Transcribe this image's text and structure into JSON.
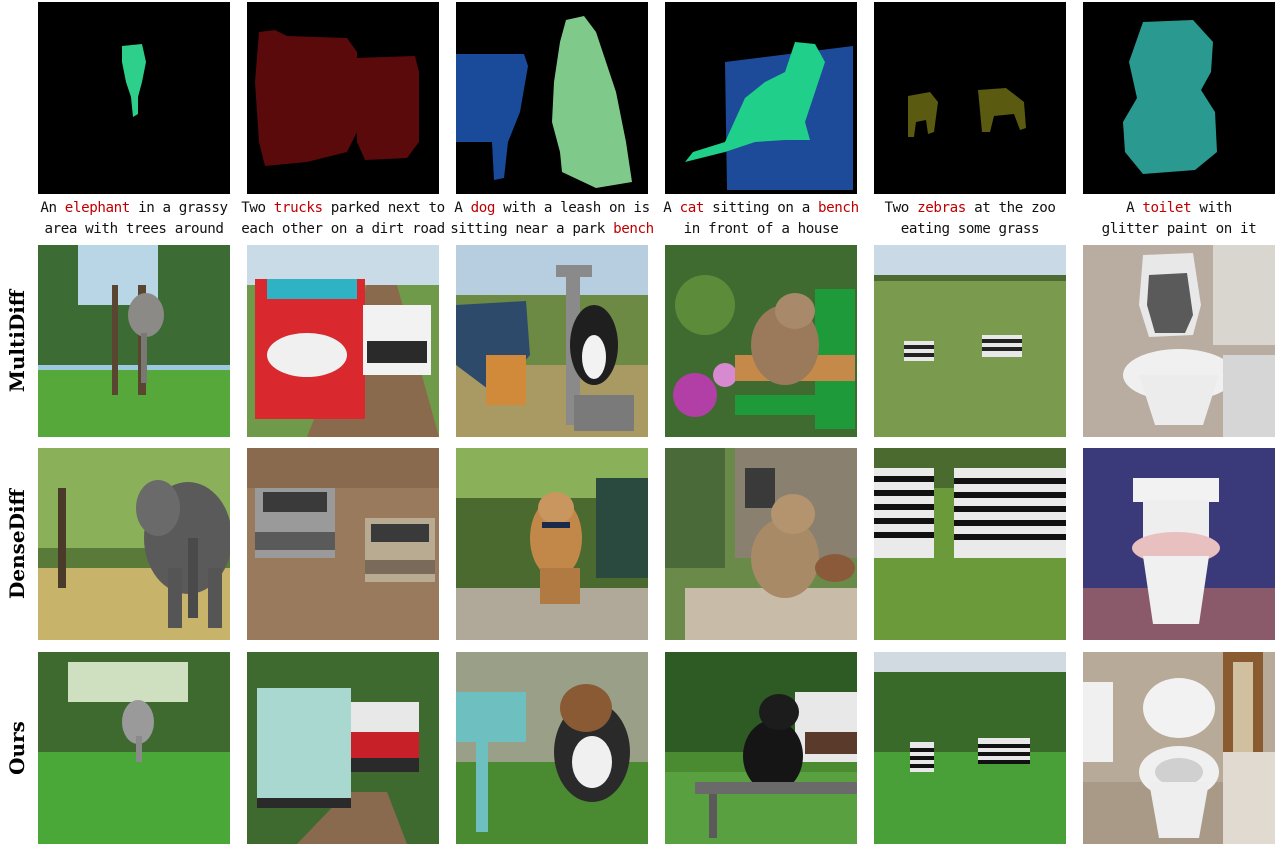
{
  "rows": [
    {
      "label": "MultiDiff"
    },
    {
      "label": "DenseDiff"
    },
    {
      "label": "Ours"
    }
  ],
  "columns": [
    {
      "caption_parts": [
        {
          "text": "An ",
          "hl": false
        },
        {
          "text": "elephant",
          "hl": true
        },
        {
          "text": " in a grassy",
          "hl": false
        },
        {
          "br": true
        },
        {
          "text": "area with trees around",
          "hl": false
        }
      ],
      "mask_color": "#2ecf8a"
    },
    {
      "caption_parts": [
        {
          "text": "Two ",
          "hl": false
        },
        {
          "text": "trucks",
          "hl": true
        },
        {
          "text": " parked next to",
          "hl": false
        },
        {
          "br": true
        },
        {
          "text": "each other on a dirt road",
          "hl": false
        }
      ],
      "mask_color": "#5a0a0a"
    },
    {
      "caption_parts": [
        {
          "text": "A ",
          "hl": false
        },
        {
          "text": "dog",
          "hl": true
        },
        {
          "text": " with a leash on is",
          "hl": false
        },
        {
          "br": true
        },
        {
          "text": "sitting near a park ",
          "hl": false
        },
        {
          "text": "bench",
          "hl": true
        }
      ],
      "mask_color": "#7fc98a"
    },
    {
      "caption_parts": [
        {
          "text": "A ",
          "hl": false
        },
        {
          "text": "cat",
          "hl": true
        },
        {
          "text": " sitting on a ",
          "hl": false
        },
        {
          "text": "bench",
          "hl": true
        },
        {
          "br": true
        },
        {
          "text": "in front of a house",
          "hl": false
        }
      ],
      "mask_color": "#1fcf8a"
    },
    {
      "caption_parts": [
        {
          "text": "Two ",
          "hl": false
        },
        {
          "text": "zebras",
          "hl": true
        },
        {
          "text": " at the zoo",
          "hl": false
        },
        {
          "br": true
        },
        {
          "text": "eating some grass",
          "hl": false
        }
      ],
      "mask_color": "#5a5a10"
    },
    {
      "caption_parts": [
        {
          "text": "A ",
          "hl": false
        },
        {
          "text": "toilet",
          "hl": true
        },
        {
          "text": " with",
          "hl": false
        },
        {
          "br": true
        },
        {
          "text": "glitter paint on it",
          "hl": false
        }
      ],
      "mask_color": "#2a9a90"
    }
  ]
}
